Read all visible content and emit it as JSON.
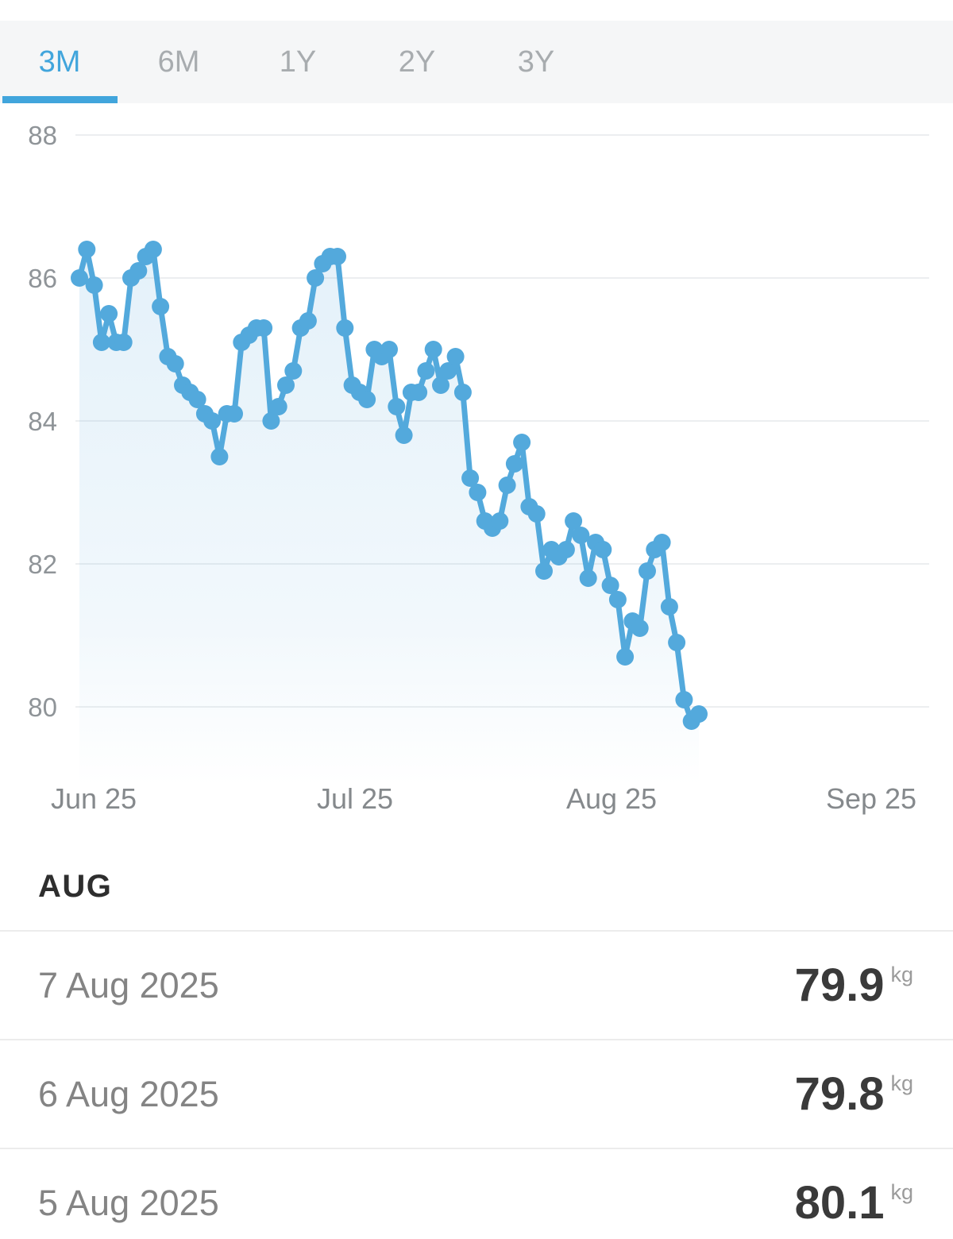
{
  "tabs": {
    "items": [
      {
        "label": "3M",
        "active": true
      },
      {
        "label": "6M",
        "active": false
      },
      {
        "label": "1Y",
        "active": false
      },
      {
        "label": "2Y",
        "active": false
      },
      {
        "label": "3Y",
        "active": false
      }
    ]
  },
  "chart_data": {
    "type": "line",
    "unit": "kg",
    "values": [
      86.0,
      86.4,
      85.9,
      85.1,
      85.5,
      85.1,
      85.1,
      86.0,
      86.1,
      86.3,
      86.4,
      85.6,
      84.9,
      84.8,
      84.5,
      84.4,
      84.3,
      84.1,
      84.0,
      83.5,
      84.1,
      84.1,
      85.1,
      85.2,
      85.3,
      85.3,
      84.0,
      84.2,
      84.5,
      84.7,
      85.3,
      85.4,
      86.0,
      86.2,
      86.3,
      86.3,
      85.3,
      84.5,
      84.4,
      84.3,
      85.0,
      84.9,
      85.0,
      84.2,
      83.8,
      84.4,
      84.4,
      84.7,
      85.0,
      84.5,
      84.7,
      84.9,
      84.4,
      83.2,
      83.0,
      82.6,
      82.5,
      82.6,
      83.1,
      83.4,
      83.7,
      82.8,
      82.7,
      81.9,
      82.2,
      82.1,
      82.2,
      82.6,
      82.4,
      81.8,
      82.3,
      82.2,
      81.7,
      81.5,
      80.7,
      81.2,
      81.1,
      81.9,
      82.2,
      82.3,
      81.4,
      80.9,
      80.1,
      79.8,
      79.9
    ],
    "y_ticks": [
      88,
      86,
      84,
      82,
      80
    ],
    "x_ticks": [
      "Jun 25",
      "Jul 25",
      "Aug 25",
      "Sep 25"
    ],
    "ylim": [
      79.0,
      88.3
    ],
    "grid": "horizontal",
    "legend": "none",
    "marker": "circle",
    "area_fill": true,
    "line_color": "#53a9dc"
  },
  "list": {
    "section_label": "AUG",
    "rows": [
      {
        "date": "7 Aug 2025",
        "value": "79.9",
        "unit": "kg"
      },
      {
        "date": "6 Aug 2025",
        "value": "79.8",
        "unit": "kg"
      },
      {
        "date": "5 Aug 2025",
        "value": "80.1",
        "unit": "kg"
      }
    ]
  },
  "colors": {
    "accent": "#41a5dc",
    "line": "#53a9dc",
    "tabbar_bg": "#f5f6f7"
  }
}
